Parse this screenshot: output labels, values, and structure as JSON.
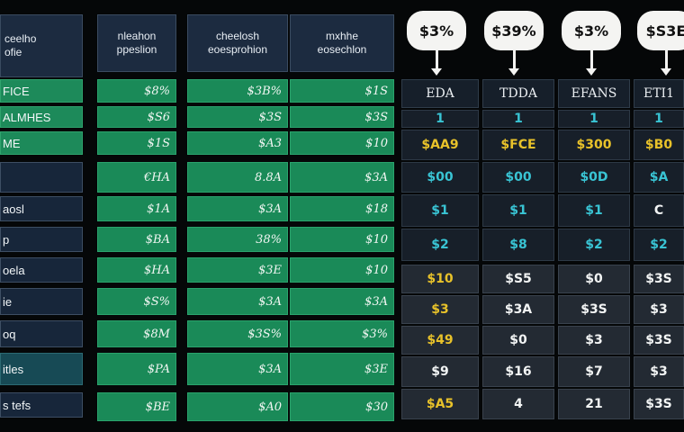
{
  "left_header": {
    "line1": "ceelho",
    "line2": "ofie"
  },
  "left_rows": [
    "FICE",
    "ALMHES",
    "ME",
    "",
    "aosl",
    "p",
    "oela",
    "ie",
    "oq",
    "itles",
    "s tefs"
  ],
  "col_headers": [
    {
      "line1": "nleahon",
      "line2": "ppeslion"
    },
    {
      "line1": "cheelosh",
      "line2": "eoesprohion"
    },
    {
      "line1": "mxhhe",
      "line2": "eosechlon"
    }
  ],
  "col1_values": [
    "$8%",
    "$S6",
    "$1S",
    "€HA",
    "$1A",
    "$BA",
    "$HA",
    "$S%",
    "$8M",
    "$PA",
    "$BE"
  ],
  "col2_values": [
    "$3B%",
    "$3S",
    "$A3",
    "8.8A",
    "$3A",
    "38%",
    "$3E",
    "$3A",
    "$3S%",
    "$3A",
    "$A0"
  ],
  "col3_values": [
    "$1S",
    "$3S",
    "$10",
    "$3A",
    "$18",
    "$10",
    "$10",
    "$3A",
    "$3%",
    "$3E",
    "$30"
  ],
  "bubbles": [
    "$3%",
    "$39%",
    "$3%",
    "$S3E"
  ],
  "right_headers": [
    "EDA",
    "TDDA",
    "EFANS",
    "ETI1"
  ],
  "right_rows": [
    [
      "1",
      "1",
      "1",
      "1"
    ],
    [
      "$AA9",
      "$FCE",
      "$300",
      "$B0"
    ],
    [
      "$00",
      "$00",
      "$0D",
      "$A"
    ],
    [
      "$1",
      "$1",
      "$1",
      "C"
    ],
    [
      "$2",
      "$8",
      "$2",
      "$2"
    ],
    [
      "$10",
      "$S5",
      "$0",
      "$3S"
    ],
    [
      "$3",
      "$3A",
      "$3S",
      "$3"
    ],
    [
      "$49",
      "$0",
      "$3",
      "$3S"
    ],
    [
      "$9",
      "$16",
      "$7",
      "$3"
    ],
    [
      "$A5",
      "4",
      "21",
      "$3S"
    ]
  ],
  "colors": {
    "background": "#050708",
    "green": "#1d8a5a",
    "navy": "#17263a",
    "amber": "#e8c22a",
    "cyan": "#39c4d4",
    "lime": "#b8e03a",
    "white": "#f2f4f4"
  }
}
